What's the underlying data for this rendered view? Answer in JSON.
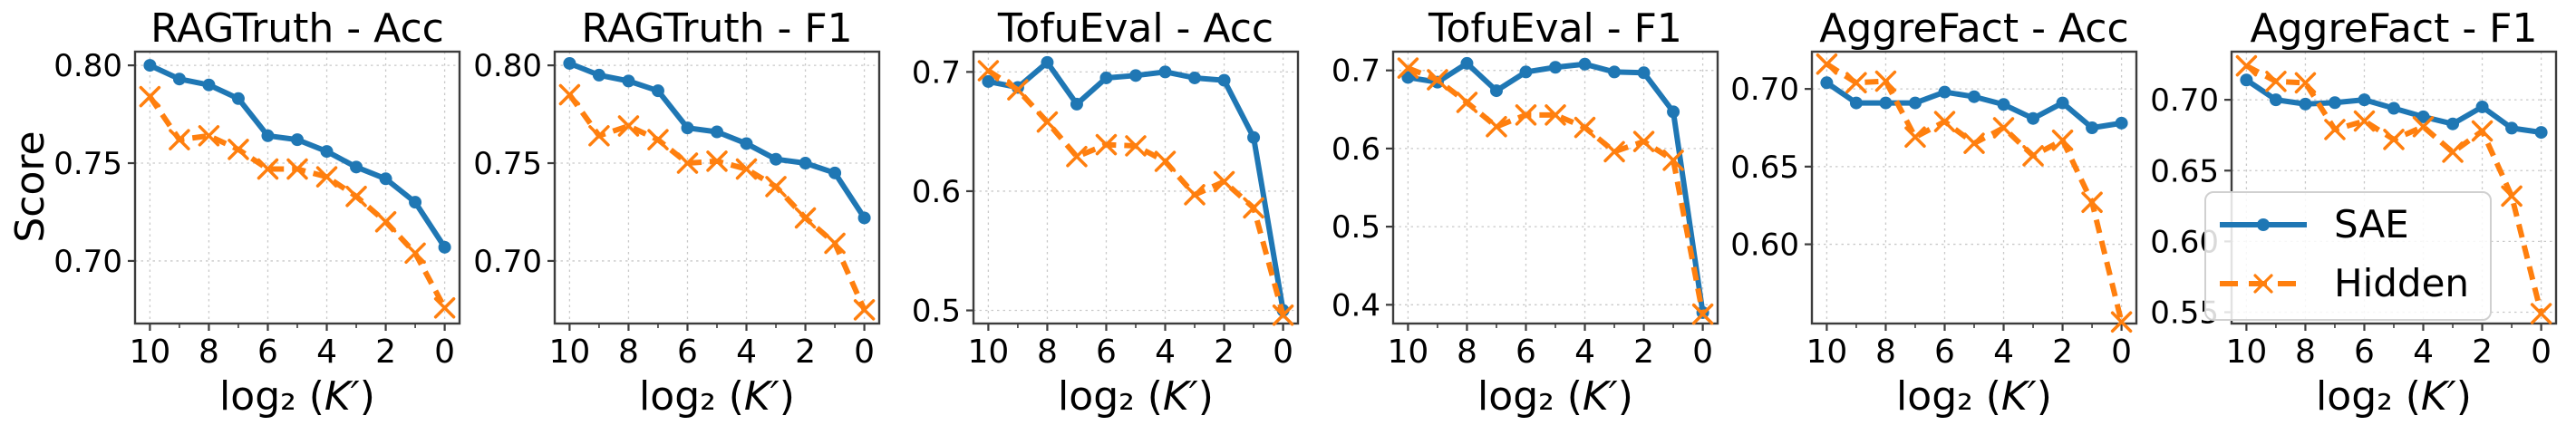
{
  "figure": {
    "ylabel": "Score",
    "background": "#ffffff",
    "axis_color": "#3c3c3c",
    "grid_color": "#c9c9c9",
    "series_colors": {
      "SAE": "#1f77b4",
      "Hidden": "#ff7f0e"
    }
  },
  "legend": {
    "items": [
      {
        "label": "SAE",
        "marker": "circle",
        "line": "solid",
        "color": "#1f77b4"
      },
      {
        "label": "Hidden",
        "marker": "x",
        "line": "dashed",
        "color": "#ff7f0e"
      }
    ],
    "position": "lower-left-of-last-subplot"
  },
  "chart_data": [
    {
      "type": "line",
      "title": "RAGTruth - Acc",
      "xlabel": "log₂ (K′)",
      "ylabel": "Score",
      "x": [
        10,
        9,
        8,
        7,
        6,
        5,
        4,
        3,
        2,
        1,
        0
      ],
      "x_axis_reversed": true,
      "xticks": [
        10,
        8,
        6,
        4,
        2,
        0
      ],
      "yticks": [
        {
          "label": "0.80",
          "value": 0.8
        },
        {
          "label": "0.75",
          "value": 0.75
        },
        {
          "label": "0.70",
          "value": 0.7
        }
      ],
      "ylim": [
        0.668,
        0.807
      ],
      "grid": true,
      "series": [
        {
          "name": "SAE",
          "values": [
            0.8,
            0.793,
            0.79,
            0.783,
            0.764,
            0.762,
            0.756,
            0.748,
            0.742,
            0.73,
            0.707
          ]
        },
        {
          "name": "Hidden",
          "values": [
            0.784,
            0.762,
            0.764,
            0.757,
            0.747,
            0.747,
            0.743,
            0.733,
            0.72,
            0.704,
            0.676
          ]
        }
      ]
    },
    {
      "type": "line",
      "title": "RAGTruth - F1",
      "xlabel": "log₂ (K′)",
      "ylabel": "Score",
      "x": [
        10,
        9,
        8,
        7,
        6,
        5,
        4,
        3,
        2,
        1,
        0
      ],
      "x_axis_reversed": true,
      "xticks": [
        10,
        8,
        6,
        4,
        2,
        0
      ],
      "yticks": [
        {
          "label": "0.80",
          "value": 0.8
        },
        {
          "label": "0.75",
          "value": 0.75
        },
        {
          "label": "0.70",
          "value": 0.7
        }
      ],
      "ylim": [
        0.668,
        0.807
      ],
      "grid": true,
      "series": [
        {
          "name": "SAE",
          "values": [
            0.801,
            0.795,
            0.792,
            0.787,
            0.768,
            0.766,
            0.76,
            0.752,
            0.75,
            0.745,
            0.722
          ]
        },
        {
          "name": "Hidden",
          "values": [
            0.785,
            0.764,
            0.769,
            0.762,
            0.75,
            0.751,
            0.747,
            0.738,
            0.722,
            0.709,
            0.675
          ]
        }
      ]
    },
    {
      "type": "line",
      "title": "TofuEval - Acc",
      "xlabel": "log₂ (K′)",
      "ylabel": "Score",
      "x": [
        10,
        9,
        8,
        7,
        6,
        5,
        4,
        3,
        2,
        1,
        0
      ],
      "x_axis_reversed": true,
      "xticks": [
        10,
        8,
        6,
        4,
        2,
        0
      ],
      "yticks": [
        {
          "label": "0.7",
          "value": 0.7
        },
        {
          "label": "0.6",
          "value": 0.6
        },
        {
          "label": "0.5",
          "value": 0.5
        }
      ],
      "ylim": [
        0.489,
        0.717
      ],
      "grid": true,
      "series": [
        {
          "name": "SAE",
          "values": [
            0.692,
            0.687,
            0.708,
            0.673,
            0.695,
            0.697,
            0.7,
            0.695,
            0.693,
            0.645,
            0.5
          ]
        },
        {
          "name": "Hidden",
          "values": [
            0.701,
            0.685,
            0.658,
            0.629,
            0.639,
            0.638,
            0.625,
            0.597,
            0.608,
            0.586,
            0.496
          ]
        }
      ]
    },
    {
      "type": "line",
      "title": "TofuEval - F1",
      "xlabel": "log₂ (K′)",
      "ylabel": "Score",
      "x": [
        10,
        9,
        8,
        7,
        6,
        5,
        4,
        3,
        2,
        1,
        0
      ],
      "x_axis_reversed": true,
      "xticks": [
        10,
        8,
        6,
        4,
        2,
        0
      ],
      "yticks": [
        {
          "label": "0.7",
          "value": 0.7
        },
        {
          "label": "0.6",
          "value": 0.6
        },
        {
          "label": "0.5",
          "value": 0.5
        },
        {
          "label": "0.4",
          "value": 0.4
        }
      ],
      "ylim": [
        0.376,
        0.724
      ],
      "grid": true,
      "series": [
        {
          "name": "SAE",
          "values": [
            0.691,
            0.685,
            0.709,
            0.674,
            0.698,
            0.704,
            0.708,
            0.698,
            0.697,
            0.647,
            0.39
          ]
        },
        {
          "name": "Hidden",
          "values": [
            0.703,
            0.688,
            0.659,
            0.628,
            0.643,
            0.643,
            0.627,
            0.596,
            0.609,
            0.585,
            0.388
          ]
        }
      ]
    },
    {
      "type": "line",
      "title": "AggreFact - Acc",
      "xlabel": "log₂ (K′)",
      "ylabel": "Score",
      "x": [
        10,
        9,
        8,
        7,
        6,
        5,
        4,
        3,
        2,
        1,
        0
      ],
      "x_axis_reversed": true,
      "xticks": [
        10,
        8,
        6,
        4,
        2,
        0
      ],
      "yticks": [
        {
          "label": "0.70",
          "value": 0.7
        },
        {
          "label": "0.65",
          "value": 0.65
        },
        {
          "label": "0.60",
          "value": 0.6
        }
      ],
      "ylim": [
        0.549,
        0.724
      ],
      "grid": true,
      "series": [
        {
          "name": "SAE",
          "values": [
            0.704,
            0.691,
            0.691,
            0.691,
            0.698,
            0.695,
            0.69,
            0.681,
            0.691,
            0.675,
            0.678
          ]
        },
        {
          "name": "Hidden",
          "values": [
            0.716,
            0.704,
            0.705,
            0.669,
            0.679,
            0.665,
            0.675,
            0.657,
            0.667,
            0.627,
            0.55
          ]
        }
      ]
    },
    {
      "type": "line",
      "title": "AggreFact - F1",
      "xlabel": "log₂ (K′)",
      "ylabel": "Score",
      "x": [
        10,
        9,
        8,
        7,
        6,
        5,
        4,
        3,
        2,
        1,
        0
      ],
      "x_axis_reversed": true,
      "xticks": [
        10,
        8,
        6,
        4,
        2,
        0
      ],
      "yticks": [
        {
          "label": "0.70",
          "value": 0.7
        },
        {
          "label": "0.65",
          "value": 0.65
        },
        {
          "label": "0.60",
          "value": 0.6
        },
        {
          "label": "0.55",
          "value": 0.55
        }
      ],
      "ylim": [
        0.542,
        0.734
      ],
      "grid": true,
      "legend": true,
      "series": [
        {
          "name": "SAE",
          "values": [
            0.714,
            0.7,
            0.697,
            0.698,
            0.7,
            0.694,
            0.688,
            0.683,
            0.695,
            0.68,
            0.677
          ]
        },
        {
          "name": "Hidden",
          "values": [
            0.724,
            0.713,
            0.712,
            0.679,
            0.685,
            0.672,
            0.681,
            0.663,
            0.678,
            0.632,
            0.549
          ]
        }
      ]
    }
  ]
}
